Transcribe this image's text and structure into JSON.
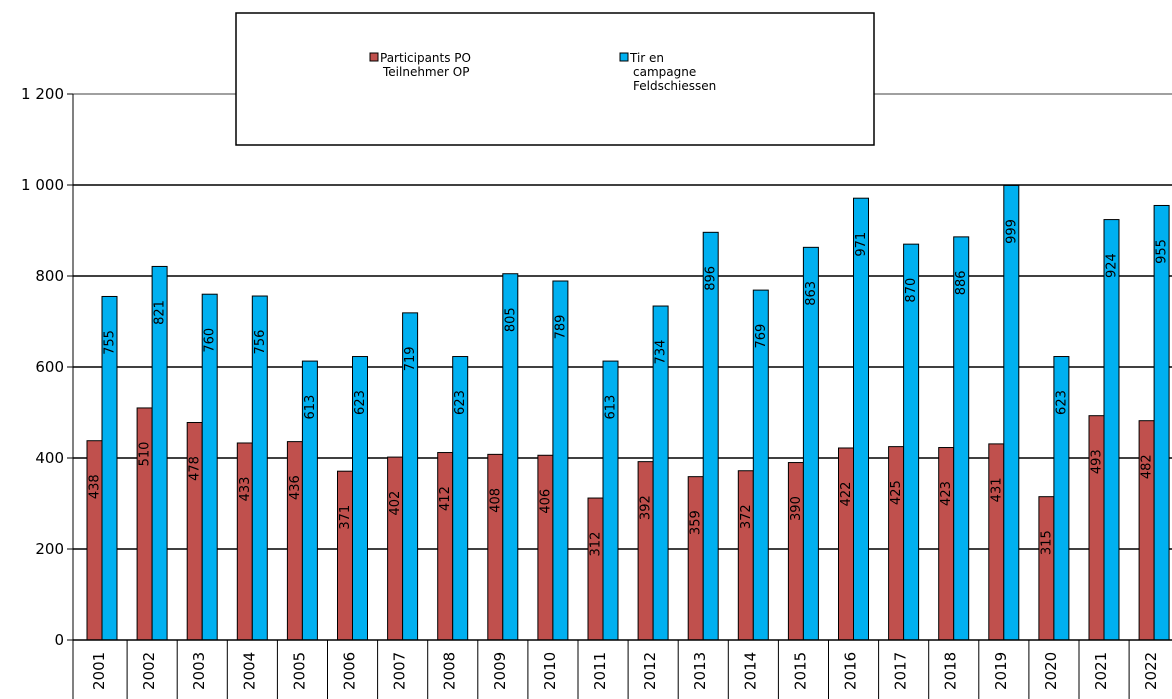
{
  "chart_data": {
    "type": "bar",
    "categories": [
      "2001",
      "2002",
      "2003",
      "2004",
      "2005",
      "2006",
      "2007",
      "2008",
      "2009",
      "2010",
      "2011",
      "2012",
      "2013",
      "2014",
      "2015",
      "2016",
      "2017",
      "2018",
      "2019",
      "2020",
      "2021",
      "2022"
    ],
    "series": [
      {
        "name_lines": [
          "Participants PO",
          "Teilnehmer OP"
        ],
        "color": "#C0504D",
        "values": [
          438,
          510,
          478,
          433,
          436,
          371,
          402,
          412,
          408,
          406,
          312,
          392,
          359,
          372,
          390,
          422,
          425,
          423,
          431,
          315,
          493,
          482
        ]
      },
      {
        "name_lines": [
          "Tir en",
          "campagne",
          "Feldschiessen"
        ],
        "color": "#00B0F0",
        "values": [
          755,
          821,
          760,
          756,
          613,
          623,
          719,
          623,
          805,
          789,
          613,
          734,
          896,
          769,
          863,
          971,
          870,
          886,
          999,
          623,
          924,
          955
        ]
      }
    ],
    "ylim": [
      0,
      1200
    ],
    "yticks": [
      0,
      200,
      400,
      600,
      800,
      1000,
      1200
    ],
    "ytick_labels": [
      "0",
      "200",
      "400",
      "600",
      "800",
      "1 000",
      "1 200"
    ],
    "grid": true,
    "legend_position": "top-center"
  }
}
